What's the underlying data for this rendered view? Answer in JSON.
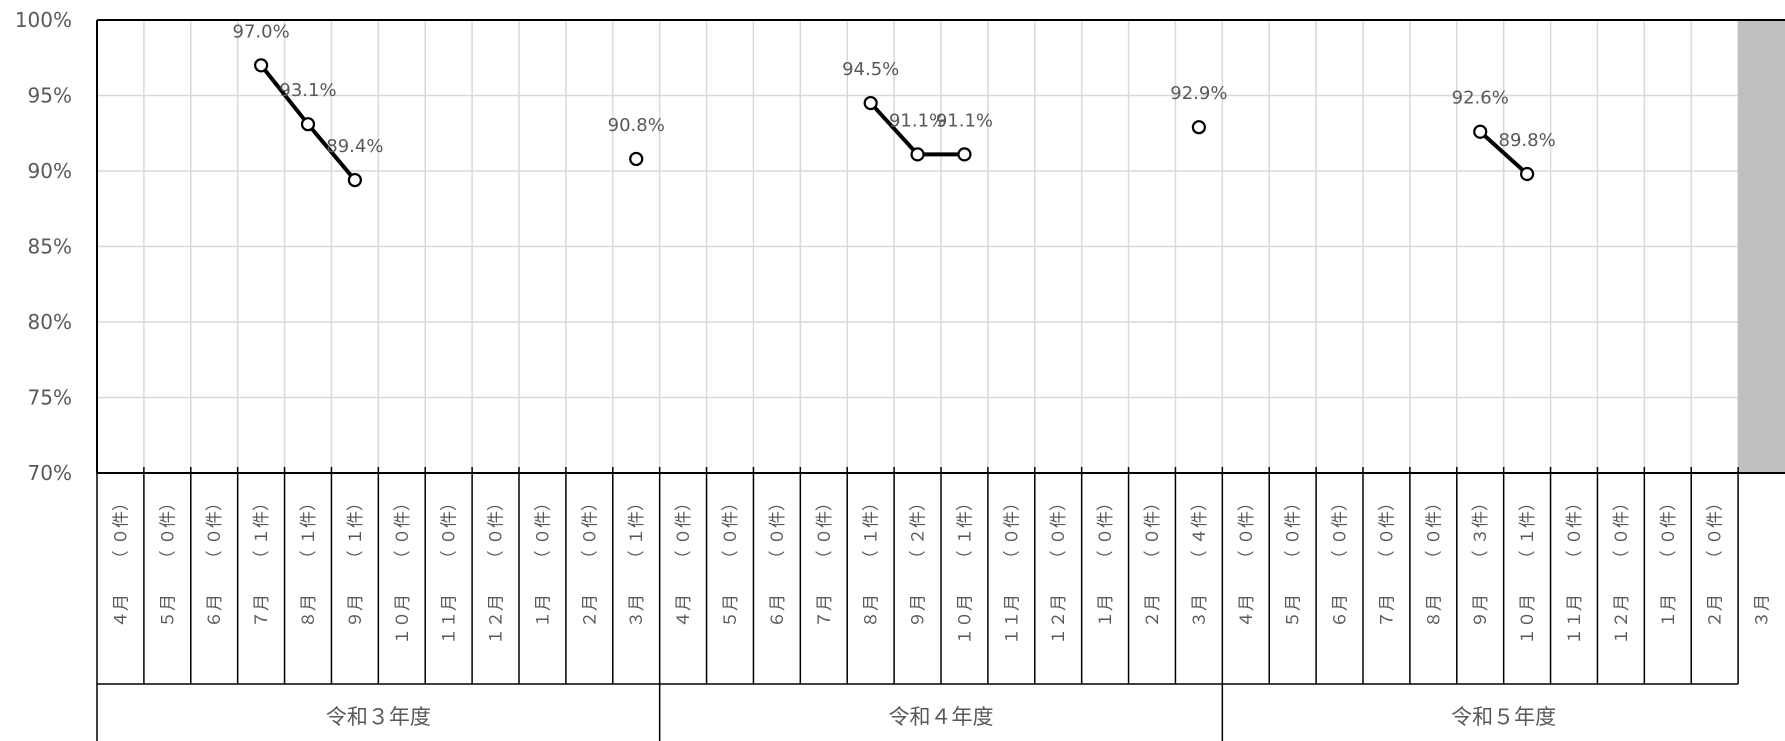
{
  "chart_data": {
    "type": "line",
    "title": "",
    "xlabel": "",
    "ylabel": "",
    "ylim": [
      70,
      100
    ],
    "y_ticks": [
      "70%",
      "75%",
      "80%",
      "85%",
      "90%",
      "95%",
      "100%"
    ],
    "grid": true,
    "legend": "none",
    "colors": {
      "line": "#000000",
      "grid": "#d9d9d9",
      "shade": "#bfbfbf",
      "text": "#595959"
    },
    "shaded_category": "3月",
    "categories": [
      {
        "year": "令和３年度",
        "month": "４月",
        "count": "（ ０件）"
      },
      {
        "year": "令和３年度",
        "month": "５月",
        "count": "（ ０件）"
      },
      {
        "year": "令和３年度",
        "month": "６月",
        "count": "（ ０件）"
      },
      {
        "year": "令和３年度",
        "month": "７月",
        "count": "（ １件）"
      },
      {
        "year": "令和３年度",
        "month": "８月",
        "count": "（ １件）"
      },
      {
        "year": "令和３年度",
        "month": "９月",
        "count": "（ １件）"
      },
      {
        "year": "令和３年度",
        "month": "１０月",
        "count": "（ ０件）"
      },
      {
        "year": "令和３年度",
        "month": "１１月",
        "count": "（ ０件）"
      },
      {
        "year": "令和３年度",
        "month": "１２月",
        "count": "（ ０件）"
      },
      {
        "year": "令和３年度",
        "month": "１月",
        "count": "（ ０件）"
      },
      {
        "year": "令和３年度",
        "month": "２月",
        "count": "（ ０件）"
      },
      {
        "year": "令和３年度",
        "month": "３月",
        "count": "（ １件）"
      },
      {
        "year": "令和４年度",
        "month": "４月",
        "count": "（ ０件）"
      },
      {
        "year": "令和４年度",
        "month": "５月",
        "count": "（ ０件）"
      },
      {
        "year": "令和４年度",
        "month": "６月",
        "count": "（ ０件）"
      },
      {
        "year": "令和４年度",
        "month": "７月",
        "count": "（ ０件）"
      },
      {
        "year": "令和４年度",
        "month": "８月",
        "count": "（ １件）"
      },
      {
        "year": "令和４年度",
        "month": "９月",
        "count": "（ ２件）"
      },
      {
        "year": "令和４年度",
        "month": "１０月",
        "count": "（ １件）"
      },
      {
        "year": "令和４年度",
        "month": "１１月",
        "count": "（ ０件）"
      },
      {
        "year": "令和４年度",
        "month": "１２月",
        "count": "（ ０件）"
      },
      {
        "year": "令和４年度",
        "month": "１月",
        "count": "（ ０件）"
      },
      {
        "year": "令和４年度",
        "month": "２月",
        "count": "（ ０件）"
      },
      {
        "year": "令和４年度",
        "month": "３月",
        "count": "（ ４件）"
      },
      {
        "year": "令和５年度",
        "month": "４月",
        "count": "（ ０件）"
      },
      {
        "year": "令和５年度",
        "month": "５月",
        "count": "（ ０件）"
      },
      {
        "year": "令和５年度",
        "month": "６月",
        "count": "（ ０件）"
      },
      {
        "year": "令和５年度",
        "month": "７月",
        "count": "（ ０件）"
      },
      {
        "year": "令和５年度",
        "month": "８月",
        "count": "（ ０件）"
      },
      {
        "year": "令和５年度",
        "month": "９月",
        "count": "（ ３件）"
      },
      {
        "year": "令和５年度",
        "month": "１０月",
        "count": "（ １件）"
      },
      {
        "year": "令和５年度",
        "month": "１１月",
        "count": "（ ０件）"
      },
      {
        "year": "令和５年度",
        "month": "１２月",
        "count": "（ ０件）"
      },
      {
        "year": "令和５年度",
        "month": "１月",
        "count": "（ ０件）"
      },
      {
        "year": "令和５年度",
        "month": "２月",
        "count": "（ ０件）"
      },
      {
        "year": "令和５年度",
        "month": "３月",
        "count": ""
      }
    ],
    "years": [
      "令和３年度",
      "令和４年度",
      "令和５年度"
    ],
    "series": [
      {
        "values": [
          null,
          null,
          null,
          97.0,
          93.1,
          89.4,
          null,
          null,
          null,
          null,
          null,
          90.8,
          null,
          null,
          null,
          null,
          94.5,
          91.1,
          91.1,
          null,
          null,
          null,
          null,
          92.9,
          null,
          null,
          null,
          null,
          null,
          92.6,
          89.8,
          null,
          null,
          null,
          null,
          null
        ],
        "labels": [
          null,
          null,
          null,
          "97.0%",
          "93.1%",
          "89.4%",
          null,
          null,
          null,
          null,
          null,
          "90.8%",
          null,
          null,
          null,
          null,
          "94.5%",
          "91.1%",
          "91.1%",
          null,
          null,
          null,
          null,
          "92.9%",
          null,
          null,
          null,
          null,
          null,
          "92.6%",
          "89.8%",
          null,
          null,
          null,
          null,
          null
        ]
      }
    ]
  }
}
